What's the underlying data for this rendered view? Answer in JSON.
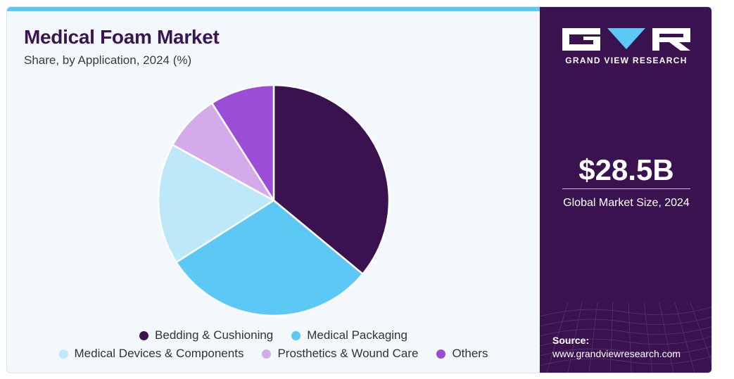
{
  "header": {
    "title": "Medical Foam Market",
    "subtitle": "Share, by Application, 2024 (%)"
  },
  "chart_data": {
    "type": "pie",
    "title": "Medical Foam Market",
    "subtitle": "Share, by Application, 2024 (%)",
    "categories": [
      "Bedding & Cushioning",
      "Medical Packaging",
      "Medical Devices & Components",
      "Prosthetics & Wound Care",
      "Others"
    ],
    "values": [
      36,
      30,
      17,
      8,
      9
    ],
    "colors": [
      "#3b1250",
      "#5bc8f5",
      "#bde8f9",
      "#d4aaea",
      "#9b4dd8"
    ],
    "legend_position": "bottom",
    "start_angle_deg": 0,
    "direction": "clockwise"
  },
  "sidebar": {
    "brand": "GRAND VIEW RESEARCH",
    "market_size": "$28.5B",
    "market_label": "Global Market Size, 2024",
    "source_label": "Source:",
    "source_url": "www.grandviewresearch.com",
    "logo_icon": "gvr-logo-icon"
  }
}
